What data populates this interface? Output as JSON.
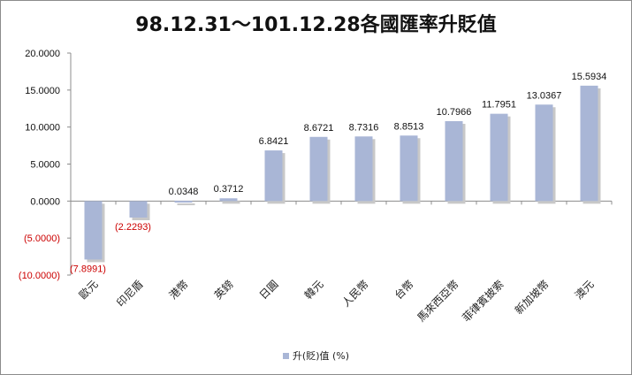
{
  "chart_data": {
    "type": "bar",
    "title": "98.12.31～101.12.28各國匯率升貶值",
    "categories": [
      "歐元",
      "印尼盾",
      "港幣",
      "英鎊",
      "日圓",
      "韓元",
      "人民幣",
      "台幣",
      "馬來西亞幣",
      "菲律賓披索",
      "新加坡幣",
      "澳元"
    ],
    "series": [
      {
        "name": "升(貶)值 (%)",
        "values": [
          -7.8991,
          -2.2293,
          0.0348,
          0.3712,
          6.8421,
          8.6721,
          8.7316,
          8.8513,
          10.7966,
          11.7951,
          13.0367,
          15.5934
        ]
      }
    ],
    "data_labels": [
      "(7.8991)",
      "(2.2293)",
      "0.0348",
      "0.3712",
      "6.8421",
      "8.6721",
      "8.7316",
      "8.8513",
      "10.7966",
      "11.7951",
      "13.0367",
      "15.5934"
    ],
    "yticks": [
      20,
      15,
      10,
      5,
      0,
      -5,
      -10
    ],
    "ytick_labels": [
      "20.0000",
      "15.0000",
      "10.0000",
      "5.0000",
      "0.0000",
      "(5.0000)",
      "(10.0000)"
    ],
    "ylim": [
      -10,
      20
    ],
    "xlabel": "",
    "ylabel": "",
    "grid": false,
    "legend_position": "bottom",
    "colors": {
      "bar": "#a9b6d6",
      "bar_shadow": "#c8c8c8",
      "negative_text": "#cc0000",
      "text": "#111111",
      "axis": "#8c8c8c"
    }
  }
}
